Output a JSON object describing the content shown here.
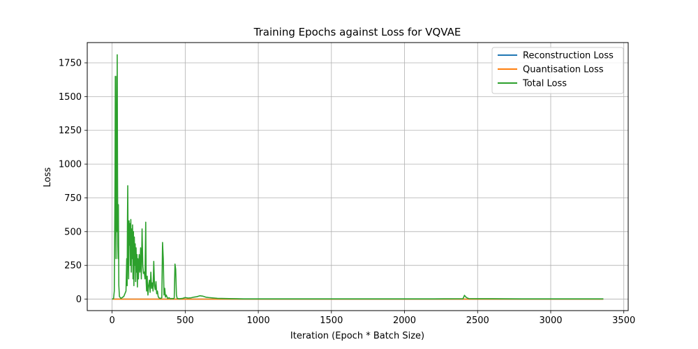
{
  "chart_data": {
    "type": "line",
    "title": "Training Epochs against Loss for VQVAE",
    "xlabel": "Iteration (Epoch * Batch Size)",
    "ylabel": "Loss",
    "xlim": [
      -170,
      3530
    ],
    "ylim": [
      -85,
      1900
    ],
    "xticks": [
      0,
      500,
      1000,
      1500,
      2000,
      2500,
      3000,
      3500
    ],
    "yticks": [
      0,
      250,
      500,
      750,
      1000,
      1250,
      1500,
      1750
    ],
    "grid": true,
    "legend_position": "top-right",
    "series": [
      {
        "name": "Reconstruction Loss",
        "color": "#1f77b4",
        "points": [
          [
            0,
            0.5
          ],
          [
            100,
            0.3
          ],
          [
            500,
            0.2
          ],
          [
            1000,
            0.1
          ],
          [
            2000,
            0.1
          ],
          [
            3360,
            0.1
          ]
        ]
      },
      {
        "name": "Quantisation Loss",
        "color": "#ff7f0e",
        "points": [
          [
            0,
            0
          ],
          [
            3360,
            0
          ]
        ]
      },
      {
        "name": "Total Loss",
        "color": "#2ca02c",
        "points": [
          [
            0,
            0
          ],
          [
            10,
            5
          ],
          [
            15,
            60
          ],
          [
            20,
            900
          ],
          [
            22,
            1650
          ],
          [
            24,
            700
          ],
          [
            27,
            300
          ],
          [
            29,
            1200
          ],
          [
            31,
            1650
          ],
          [
            33,
            500
          ],
          [
            35,
            1810
          ],
          [
            37,
            1000
          ],
          [
            39,
            400
          ],
          [
            41,
            300
          ],
          [
            43,
            700
          ],
          [
            46,
            100
          ],
          [
            50,
            20
          ],
          [
            60,
            5
          ],
          [
            80,
            20
          ],
          [
            95,
            60
          ],
          [
            100,
            300
          ],
          [
            103,
            100
          ],
          [
            105,
            580
          ],
          [
            107,
            840
          ],
          [
            110,
            300
          ],
          [
            113,
            150
          ],
          [
            116,
            580
          ],
          [
            119,
            400
          ],
          [
            122,
            560
          ],
          [
            125,
            250
          ],
          [
            128,
            590
          ],
          [
            131,
            200
          ],
          [
            134,
            520
          ],
          [
            137,
            300
          ],
          [
            140,
            550
          ],
          [
            143,
            150
          ],
          [
            146,
            500
          ],
          [
            149,
            100
          ],
          [
            152,
            460
          ],
          [
            155,
            250
          ],
          [
            158,
            410
          ],
          [
            161,
            130
          ],
          [
            164,
            380
          ],
          [
            167,
            200
          ],
          [
            170,
            330
          ],
          [
            173,
            90
          ],
          [
            176,
            300
          ],
          [
            180,
            150
          ],
          [
            185,
            330
          ],
          [
            190,
            200
          ],
          [
            195,
            380
          ],
          [
            200,
            150
          ],
          [
            205,
            520
          ],
          [
            210,
            250
          ],
          [
            215,
            190
          ],
          [
            220,
            200
          ],
          [
            225,
            150
          ],
          [
            230,
            570
          ],
          [
            233,
            130
          ],
          [
            236,
            60
          ],
          [
            240,
            170
          ],
          [
            245,
            30
          ],
          [
            250,
            100
          ],
          [
            255,
            140
          ],
          [
            260,
            50
          ],
          [
            265,
            200
          ],
          [
            270,
            80
          ],
          [
            275,
            120
          ],
          [
            280,
            60
          ],
          [
            285,
            280
          ],
          [
            290,
            100
          ],
          [
            295,
            70
          ],
          [
            300,
            130
          ],
          [
            305,
            40
          ],
          [
            310,
            60
          ],
          [
            315,
            20
          ],
          [
            320,
            10
          ],
          [
            330,
            5
          ],
          [
            340,
            10
          ],
          [
            345,
            420
          ],
          [
            350,
            300
          ],
          [
            355,
            30
          ],
          [
            360,
            80
          ],
          [
            365,
            15
          ],
          [
            370,
            30
          ],
          [
            380,
            5
          ],
          [
            390,
            10
          ],
          [
            400,
            3
          ],
          [
            410,
            5
          ],
          [
            420,
            3
          ],
          [
            425,
            10
          ],
          [
            430,
            260
          ],
          [
            435,
            220
          ],
          [
            440,
            30
          ],
          [
            445,
            5
          ],
          [
            460,
            3
          ],
          [
            480,
            5
          ],
          [
            500,
            12
          ],
          [
            520,
            8
          ],
          [
            540,
            10
          ],
          [
            560,
            15
          ],
          [
            580,
            18
          ],
          [
            600,
            25
          ],
          [
            620,
            22
          ],
          [
            640,
            15
          ],
          [
            660,
            12
          ],
          [
            680,
            10
          ],
          [
            700,
            8
          ],
          [
            720,
            6
          ],
          [
            750,
            5
          ],
          [
            800,
            4
          ],
          [
            850,
            3
          ],
          [
            900,
            2
          ],
          [
            1000,
            2
          ],
          [
            1200,
            2
          ],
          [
            1500,
            2
          ],
          [
            1800,
            2
          ],
          [
            2000,
            2
          ],
          [
            2200,
            2
          ],
          [
            2400,
            3
          ],
          [
            2410,
            28
          ],
          [
            2420,
            15
          ],
          [
            2430,
            8
          ],
          [
            2440,
            4
          ],
          [
            2500,
            3
          ],
          [
            2600,
            3
          ],
          [
            2800,
            2
          ],
          [
            3000,
            2
          ],
          [
            3200,
            2
          ],
          [
            3360,
            2
          ]
        ]
      }
    ]
  }
}
